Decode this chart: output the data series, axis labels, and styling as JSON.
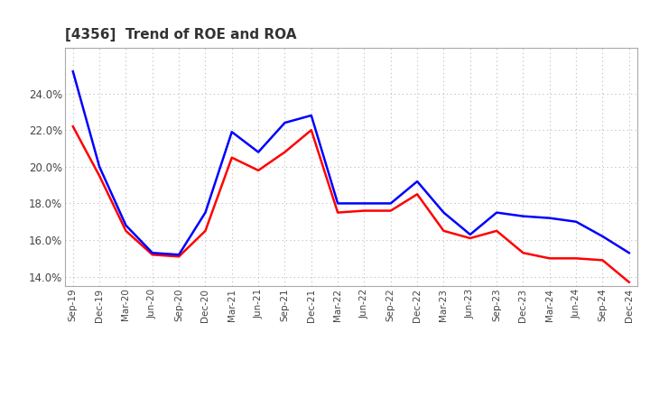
{
  "title": "[4356]  Trend of ROE and ROA",
  "x_labels": [
    "Sep-19",
    "Dec-19",
    "Mar-20",
    "Jun-20",
    "Sep-20",
    "Dec-20",
    "Mar-21",
    "Jun-21",
    "Sep-21",
    "Dec-21",
    "Mar-22",
    "Jun-22",
    "Sep-22",
    "Dec-22",
    "Mar-23",
    "Jun-23",
    "Sep-23",
    "Dec-23",
    "Mar-24",
    "Jun-24",
    "Sep-24",
    "Dec-24"
  ],
  "roe": [
    22.2,
    19.5,
    16.5,
    15.2,
    15.1,
    16.5,
    20.5,
    19.8,
    20.8,
    22.0,
    17.5,
    17.6,
    17.6,
    18.5,
    16.5,
    16.1,
    16.5,
    15.3,
    15.0,
    15.0,
    14.9,
    13.7
  ],
  "roa": [
    25.2,
    20.0,
    16.8,
    15.3,
    15.2,
    17.5,
    21.9,
    20.8,
    22.4,
    22.8,
    18.0,
    18.0,
    18.0,
    19.2,
    17.5,
    16.3,
    17.5,
    17.3,
    17.2,
    17.0,
    16.2,
    15.3
  ],
  "roe_color": "#ff0000",
  "roa_color": "#0000ff",
  "ylim": [
    13.5,
    26.5
  ],
  "yticks": [
    14.0,
    16.0,
    18.0,
    20.0,
    22.0,
    24.0
  ],
  "background_color": "#ffffff",
  "grid_color": "#bbbbbb",
  "linewidth": 1.8,
  "title_color": "#333333"
}
